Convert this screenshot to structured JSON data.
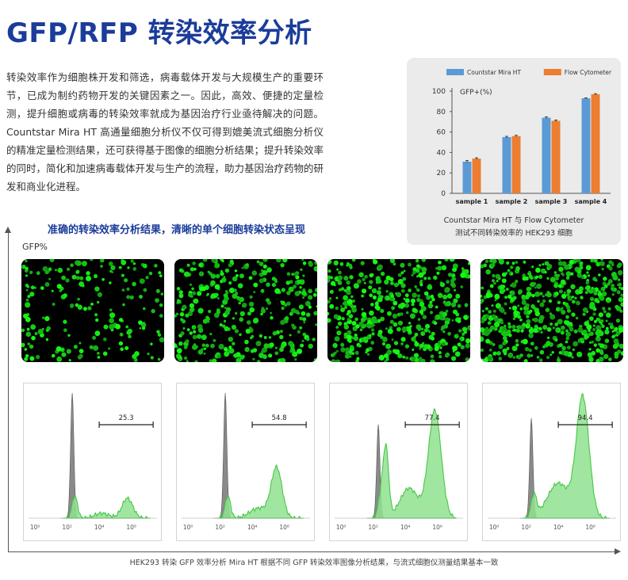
{
  "title": "GFP/RFP 转染效率分析",
  "intro": "转染效率作为细胞株开发和筛选，病毒载体开发与大规模生产的重要环节，已成为制约药物开发的关键因素之一。因此，高效、便捷的定量检测，提升细胞或病毒的转染效率就成为基因治疗行业亟待解决的问题。Countstar Mira HT 高通量细胞分析仪不仅可得到媲美流式细胞分析仪的精准定量检测结果，还可获得基于图像的细胞分析结果；提升转染效率的同时，简化和加速病毒载体开发与生产的流程，助力基因治疗药物的研发和商业化进程。",
  "chart_panel": {
    "caption_line1": "Countstar Mira HT 与 Flow Cytometer",
    "caption_line2": "测试不同转染效率的 HEK293 细胞"
  },
  "chart_data": {
    "type": "bar",
    "ylabel": "GFP+(%)",
    "categories": [
      "sample 1",
      "sample 2",
      "sample 3",
      "sample 4"
    ],
    "ylim": [
      0,
      100
    ],
    "yticks": [
      0,
      20,
      40,
      60,
      80,
      100
    ],
    "legend_position": "top",
    "series": [
      {
        "name": "Countstar Mira  HT",
        "color": "#5b9bd5",
        "values": [
          31,
          55,
          74,
          93
        ],
        "errors": [
          1.2,
          0.8,
          0.8,
          0.5
        ]
      },
      {
        "name": "Flow Cytometer",
        "color": "#ed7d31",
        "values": [
          34,
          56,
          71,
          97
        ],
        "errors": [
          0.8,
          0.8,
          0.8,
          0.5
        ]
      }
    ]
  },
  "subtitle": "准确的转染效率分析结果，清晰的单个细胞转染状态呈现",
  "y_axis_label": "GFP%",
  "fluorescence_images": [
    {
      "density": 0.25
    },
    {
      "density": 0.55
    },
    {
      "density": 0.77
    },
    {
      "density": 0.94
    }
  ],
  "histograms": [
    {
      "gate_value": "25.3"
    },
    {
      "gate_value": "54.8"
    },
    {
      "gate_value": "77.4"
    },
    {
      "gate_value": "94.4"
    }
  ],
  "histogram_x_ticks": [
    "10⁰",
    "10²",
    "10⁴",
    "10⁶"
  ],
  "colors": {
    "title": "#1b3c9a",
    "gfp_green": "#22dd22",
    "histogram_fill": "#8fe08f",
    "histogram_line": "#3cc43c",
    "control_gray": "#8a8a8a"
  },
  "footer": "HEK293 转染 GFP 效率分析  Mira HT 根据不同 GFP 转染效率图像分析结果，与流式细胞仪测量结果基本一致"
}
